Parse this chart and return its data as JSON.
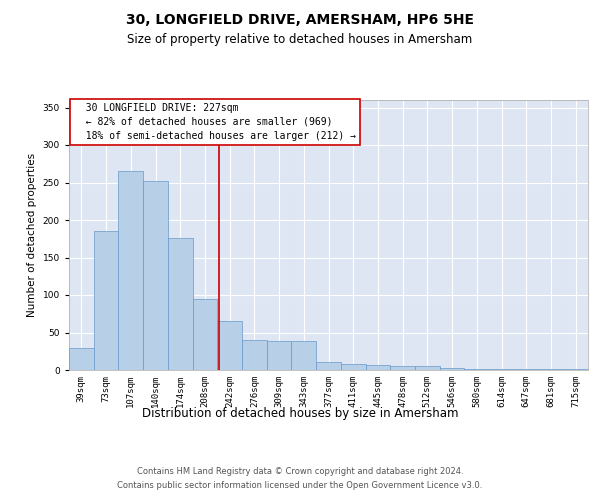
{
  "title": "30, LONGFIELD DRIVE, AMERSHAM, HP6 5HE",
  "subtitle": "Size of property relative to detached houses in Amersham",
  "xlabel": "Distribution of detached houses by size in Amersham",
  "ylabel": "Number of detached properties",
  "categories": [
    "39sqm",
    "73sqm",
    "107sqm",
    "140sqm",
    "174sqm",
    "208sqm",
    "242sqm",
    "276sqm",
    "309sqm",
    "343sqm",
    "377sqm",
    "411sqm",
    "445sqm",
    "478sqm",
    "512sqm",
    "546sqm",
    "580sqm",
    "614sqm",
    "647sqm",
    "681sqm",
    "715sqm"
  ],
  "values": [
    30,
    185,
    265,
    252,
    176,
    95,
    65,
    40,
    39,
    39,
    11,
    8,
    7,
    6,
    5,
    3,
    2,
    2,
    1,
    2,
    1
  ],
  "bar_color": "#b8cfe8",
  "bar_edge_color": "#6699cc",
  "bar_width": 1.0,
  "ylim": [
    0,
    360
  ],
  "yticks": [
    0,
    50,
    100,
    150,
    200,
    250,
    300,
    350
  ],
  "vline_x": 5.56,
  "vline_color": "#cc0000",
  "annotation_line1": "  30 LONGFIELD DRIVE: 227sqm",
  "annotation_line2": "  ← 82% of detached houses are smaller (969)",
  "annotation_line3": "  18% of semi-detached houses are larger (212) →",
  "annotation_box_color": "white",
  "annotation_box_edge": "#cc0000",
  "bg_color": "#dde6f2",
  "grid_color": "white",
  "title_fontsize": 10,
  "subtitle_fontsize": 8.5,
  "ylabel_fontsize": 7.5,
  "xlabel_fontsize": 8.5,
  "tick_fontsize": 6.5,
  "annot_fontsize": 7,
  "footer_fontsize": 6,
  "footer_line1": "Contains HM Land Registry data © Crown copyright and database right 2024.",
  "footer_line2": "Contains public sector information licensed under the Open Government Licence v3.0."
}
